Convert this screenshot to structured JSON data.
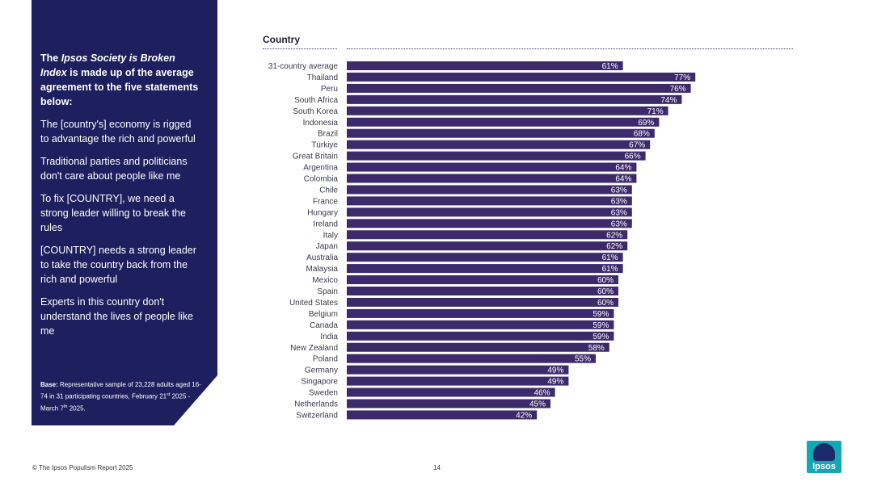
{
  "side_panel": {
    "intro_prefix": "The ",
    "intro_emph": "Ipsos Society is Broken Index",
    "intro_suffix": " is made up of the average agreement to the five statements below:",
    "statements": [
      "The [country's] economy is rigged to advantage the rich and powerful",
      "Traditional parties and politicians don't care about people like me",
      "To fix [COUNTRY], we need a strong leader willing to break the rules",
      "[COUNTRY] needs a strong leader to take the country back from the rich and powerful",
      "Experts in this country don't understand the lives of people like me"
    ],
    "base_label": "Base:",
    "base_text": " Representative sample of 23,228 adults aged 16-74 in 31 participating countries, February 21",
    "base_sup1": "st",
    "base_mid": " 2025 - March 7",
    "base_sup2": "th",
    "base_end": " 2025."
  },
  "chart_data": {
    "type": "bar",
    "orientation": "horizontal",
    "title": "Country",
    "categories": [
      "31-country average",
      "Thailand",
      "Peru",
      "South Africa",
      "South Korea",
      "Indonesia",
      "Brazil",
      "Türkiye",
      "Great Britain",
      "Argentina",
      "Colombia",
      "Chile",
      "France",
      "Hungary",
      "Ireland",
      "Italy",
      "Japan",
      "Australia",
      "Malaysia",
      "Mexico",
      "Spain",
      "United States",
      "Belgium",
      "Canada",
      "India",
      "New Zealand",
      "Poland",
      "Germany",
      "Singapore",
      "Sweden",
      "Netherlands",
      "Switzerland"
    ],
    "values": [
      61,
      77,
      76,
      74,
      71,
      69,
      68,
      67,
      66,
      64,
      64,
      63,
      63,
      63,
      63,
      62,
      62,
      61,
      61,
      60,
      60,
      60,
      59,
      59,
      59,
      58,
      55,
      49,
      49,
      46,
      45,
      42
    ],
    "value_suffix": "%",
    "bar_color": "#3d2a6b",
    "xlim": [
      0,
      100
    ],
    "grid": false
  },
  "footer": {
    "left": "© The Ipsos Populism Report 2025",
    "page": "14"
  },
  "logo": {
    "text": "Ipsos"
  }
}
